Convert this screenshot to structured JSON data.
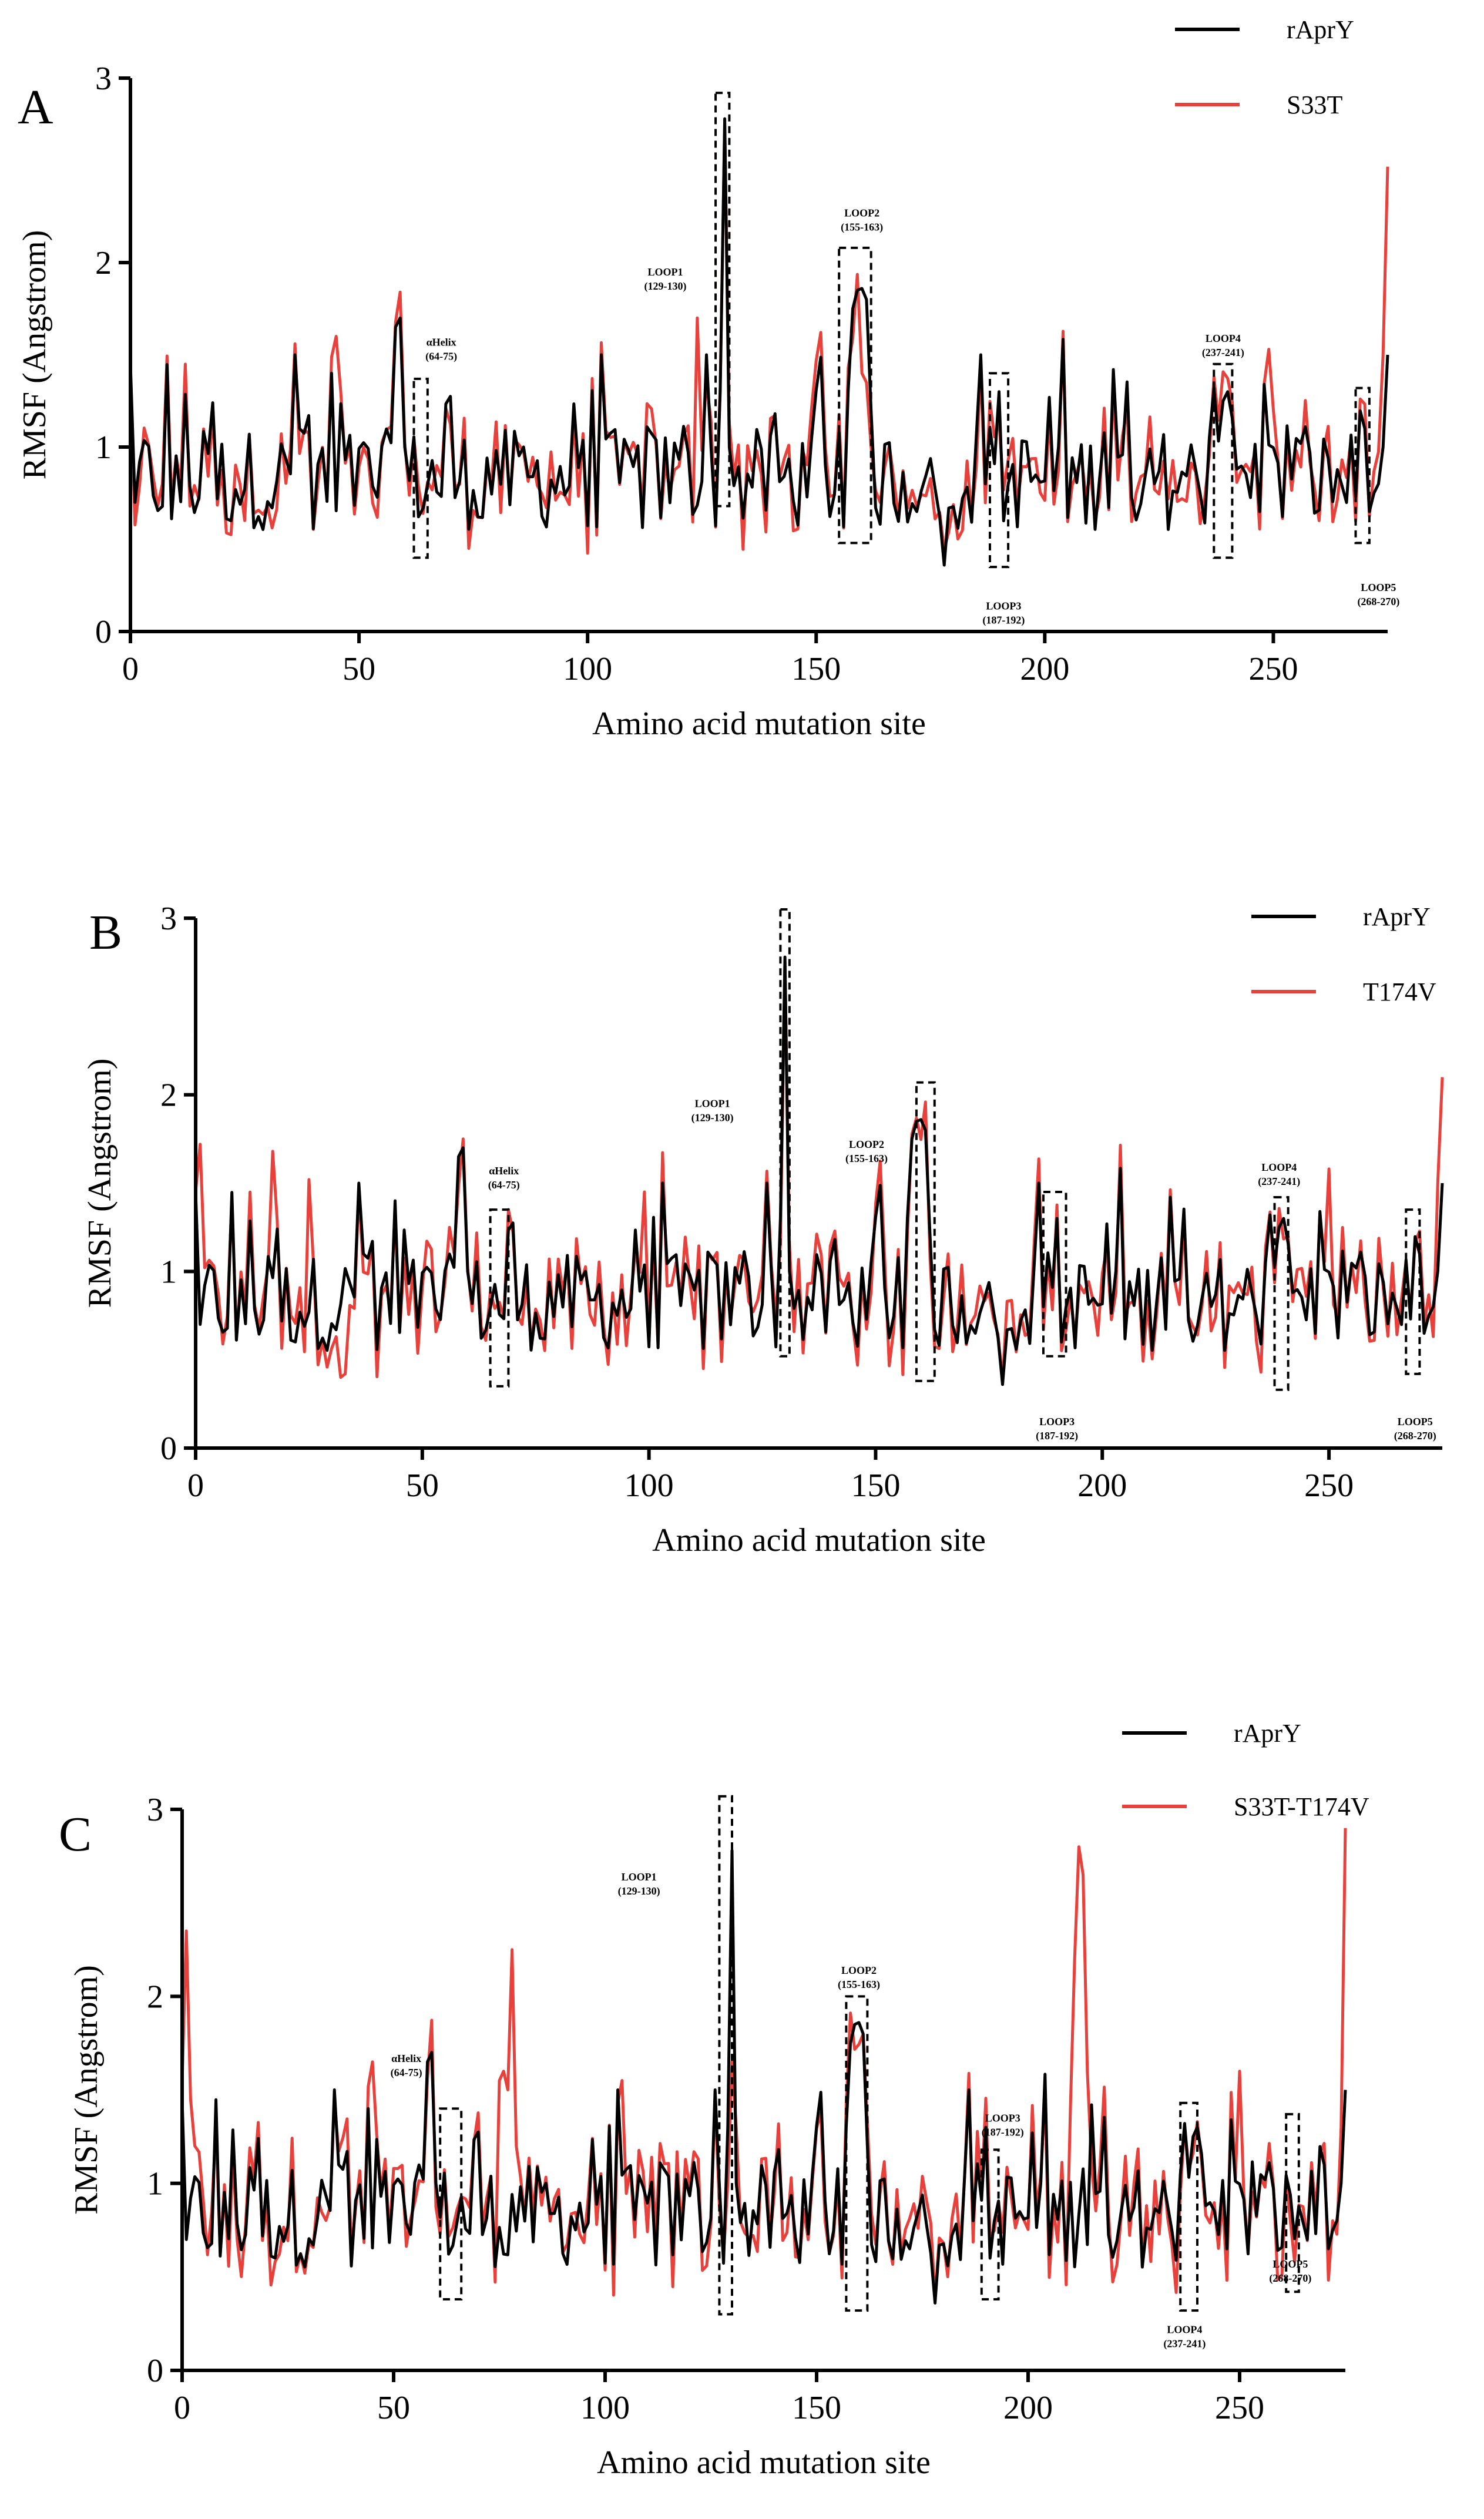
{
  "colors": {
    "reference": "#000000",
    "mutant": "#e8403a"
  },
  "chart_data": [
    {
      "type": "line",
      "panel": "A",
      "xlabel": "Amino acid mutation site",
      "ylabel": "RMSF (Angstrom)",
      "xlim": [
        0,
        275
      ],
      "ylim": [
        0,
        3
      ],
      "xticks": [
        0,
        50,
        100,
        150,
        200,
        250
      ],
      "yticks": [
        0,
        1,
        2,
        3
      ],
      "legend_position": "top-right",
      "series": [
        {
          "name": "rAprY",
          "color": "#000000",
          "role": "reference"
        },
        {
          "name": "S33T",
          "color": "#e8403a",
          "role": "mutant"
        }
      ],
      "mutant_overrides": [
        [
          59,
          1.84
        ],
        [
          45,
          1.6
        ],
        [
          36,
          1.56
        ],
        [
          124,
          1.7
        ],
        [
          160,
          1.4
        ],
        [
          161,
          1.35
        ],
        [
          162,
          1.0
        ],
        [
          249,
          1.53
        ],
        [
          250,
          1.2
        ],
        [
          274,
          1.5
        ],
        [
          275,
          2.52
        ]
      ],
      "regions": [
        {
          "name": "αHelix",
          "range": "(64-75)",
          "x": [
            62,
            65
          ],
          "y": [
            0.4,
            1.37
          ],
          "label_x": 68,
          "label_y": 1.55
        },
        {
          "name": "LOOP1",
          "range": "(129-130)",
          "x": [
            128,
            131
          ],
          "y": [
            0.68,
            2.92
          ],
          "label_x": 117,
          "label_y": 1.93
        },
        {
          "name": "LOOP2",
          "range": "(155-163)",
          "x": [
            155,
            162
          ],
          "y": [
            0.48,
            2.08
          ],
          "label_x": 160,
          "label_y": 2.25
        },
        {
          "name": "LOOP3",
          "range": "(187-192)",
          "x": [
            188,
            192
          ],
          "y": [
            0.35,
            1.4
          ],
          "label_x": 191,
          "label_y": 0.12
        },
        {
          "name": "LOOP4",
          "range": "(237-241)",
          "x": [
            237,
            241
          ],
          "y": [
            0.4,
            1.45
          ],
          "label_x": 239,
          "label_y": 1.57
        },
        {
          "name": "LOOP5",
          "range": "(268-270)",
          "x": [
            268,
            271
          ],
          "y": [
            0.48,
            1.32
          ],
          "label_x": 273,
          "label_y": 0.22
        }
      ]
    },
    {
      "type": "line",
      "panel": "B",
      "xlabel": "Amino acid mutation site",
      "ylabel": "RMSF (Angstrom)",
      "xlim": [
        0,
        275
      ],
      "ylim": [
        0,
        3
      ],
      "xticks": [
        0,
        50,
        100,
        150,
        200,
        250
      ],
      "yticks": [
        0,
        1,
        2,
        3
      ],
      "legend_position": "top-right",
      "series": [
        {
          "name": "rAprY",
          "color": "#000000",
          "role": "reference"
        },
        {
          "name": "T174V",
          "color": "#e8403a",
          "role": "mutant"
        }
      ],
      "mutant_overrides": [
        [
          1,
          1.72
        ],
        [
          17,
          1.68
        ],
        [
          25,
          1.52
        ],
        [
          32,
          0.4
        ],
        [
          33,
          0.42
        ],
        [
          99,
          1.45
        ],
        [
          250,
          1.58
        ],
        [
          274,
          1.5
        ],
        [
          275,
          2.1
        ]
      ],
      "regions": [
        {
          "name": "αHelix",
          "range": "(64-75)",
          "x": [
            65,
            69
          ],
          "y": [
            0.35,
            1.35
          ],
          "label_x": 68,
          "label_y": 1.55
        },
        {
          "name": "LOOP1",
          "range": "(129-130)",
          "x": [
            129,
            131
          ],
          "y": [
            0.52,
            3.05
          ],
          "label_x": 114,
          "label_y": 1.93
        },
        {
          "name": "LOOP2",
          "range": "(155-163)",
          "x": [
            159,
            163
          ],
          "y": [
            0.38,
            2.07
          ],
          "label_x": 148,
          "label_y": 1.7
        },
        {
          "name": "LOOP3",
          "range": "(187-192)",
          "x": [
            187,
            192
          ],
          "y": [
            0.52,
            1.45
          ],
          "label_x": 190,
          "label_y": 0.13
        },
        {
          "name": "LOOP4",
          "range": "(237-241)",
          "x": [
            238,
            241
          ],
          "y": [
            0.33,
            1.42
          ],
          "label_x": 239,
          "label_y": 1.57
        },
        {
          "name": "LOOP5",
          "range": "(268-270)",
          "x": [
            267,
            270
          ],
          "y": [
            0.42,
            1.35
          ],
          "label_x": 269,
          "label_y": 0.13
        }
      ]
    },
    {
      "type": "line",
      "panel": "C",
      "xlabel": "Amino acid mutation site",
      "ylabel": "RMSF (Angstrom)",
      "xlim": [
        0,
        275
      ],
      "ylim": [
        0,
        3
      ],
      "xticks": [
        0,
        50,
        100,
        150,
        200,
        250
      ],
      "yticks": [
        0,
        1,
        2,
        3
      ],
      "legend_position": "top-right",
      "series": [
        {
          "name": "rAprY",
          "color": "#000000",
          "role": "reference"
        },
        {
          "name": "S33T-T174V",
          "color": "#e8403a",
          "role": "mutant"
        }
      ],
      "mutant_overrides": [
        [
          1,
          2.35
        ],
        [
          2,
          1.45
        ],
        [
          3,
          1.2
        ],
        [
          45,
          1.65
        ],
        [
          75,
          1.55
        ],
        [
          76,
          1.6
        ],
        [
          77,
          1.5
        ],
        [
          78,
          2.25
        ],
        [
          79,
          1.2
        ],
        [
          104,
          1.55
        ],
        [
          129,
          1.0
        ],
        [
          130,
          1.65
        ],
        [
          131,
          1.3
        ],
        [
          210,
          1.4
        ],
        [
          211,
          2.2
        ],
        [
          212,
          2.8
        ],
        [
          213,
          2.65
        ],
        [
          214,
          1.6
        ],
        [
          215,
          1.1
        ],
        [
          250,
          1.6
        ],
        [
          274,
          1.3
        ],
        [
          275,
          2.9
        ]
      ],
      "regions": [
        {
          "name": "αHelix",
          "range": "(64-75)",
          "x": [
            61,
            66
          ],
          "y": [
            0.38,
            1.4
          ],
          "label_x": 53,
          "label_y": 1.65
        },
        {
          "name": "LOOP1",
          "range": "(129-130)",
          "x": [
            127,
            130
          ],
          "y": [
            0.3,
            3.07
          ],
          "label_x": 108,
          "label_y": 2.62
        },
        {
          "name": "LOOP2",
          "range": "(155-163)",
          "x": [
            157,
            162
          ],
          "y": [
            0.32,
            2.0
          ],
          "label_x": 160,
          "label_y": 2.12
        },
        {
          "name": "LOOP3",
          "range": "(187-192)",
          "x": [
            189,
            193
          ],
          "y": [
            0.38,
            1.18
          ],
          "label_x": 194,
          "label_y": 1.33
        },
        {
          "name": "LOOP4",
          "range": "(237-241)",
          "x": [
            236,
            240
          ],
          "y": [
            0.32,
            1.43
          ],
          "label_x": 237,
          "label_y": 0.2
        },
        {
          "name": "LOOP5",
          "range": "(268-270)",
          "x": [
            261,
            264
          ],
          "y": [
            0.42,
            1.37
          ],
          "label_x": 262,
          "label_y": 0.55
        }
      ]
    }
  ]
}
